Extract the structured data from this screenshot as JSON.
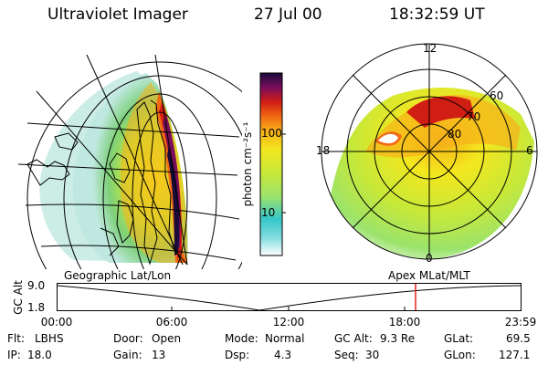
{
  "header": {
    "instrument": "Ultraviolet Imager",
    "date": "27 Jul 00",
    "time": "18:32:59 UT"
  },
  "colorbar": {
    "unit_label": "photon cm⁻²s⁻¹",
    "ticks": [
      "100",
      "10"
    ],
    "scale": "log",
    "colors": [
      "#ffffff",
      "#7fdce0",
      "#36c7c9",
      "#9be36c",
      "#c6e83a",
      "#f3e71e",
      "#f7b21a",
      "#f26a14",
      "#d11e14",
      "#7a0d5a",
      "#1a0b3a"
    ]
  },
  "left_map": {
    "caption": "Geographic Lat/Lon"
  },
  "right_map": {
    "caption": "Apex MLat/MLT",
    "mlt_labels": [
      "12",
      "18",
      "6",
      "0"
    ],
    "mlat_labels": [
      "60",
      "70",
      "80"
    ]
  },
  "altitude_plot": {
    "ylabel": "GC Alt",
    "yticks": [
      "9.0",
      "1.8"
    ],
    "xticks": [
      "00:00",
      "06:00",
      "12:00",
      "18:00",
      "23:59"
    ],
    "marker_color": "#e0201a",
    "current_time": "18:32:59"
  },
  "status": {
    "filter_label": "Flt:",
    "filter_value": "LBHS",
    "ip_label": "IP:",
    "ip_value": "18.0",
    "door_label": "Door:",
    "door_value": "Open",
    "gain_label": "Gain:",
    "gain_value": "13",
    "mode_label": "Mode:",
    "mode_value": "Normal",
    "dsp_label": "Dsp:",
    "dsp_value": "4.3",
    "gcalt_label": "GC Alt:",
    "gcalt_value": "9.3 Re",
    "seq_label": "Seq:",
    "seq_value": "30",
    "glat_label": "GLat:",
    "glat_value": "69.5",
    "glon_label": "GLon:",
    "glon_value": "127.1"
  }
}
